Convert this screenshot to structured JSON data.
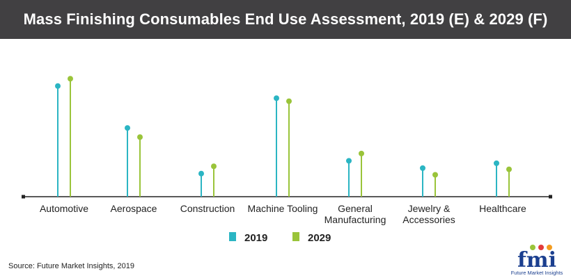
{
  "title": "Mass Finishing Consumables End Use Assessment, 2019 (E) & 2029 (F)",
  "source": "Source: Future Market Insights, 2019",
  "logo": {
    "wordmark": "fmi",
    "tagline": "Future Market Insights"
  },
  "colors": {
    "series_2019": "#2bb5c3",
    "series_2029": "#9ac43a",
    "title_bg": "#414042",
    "logo_blue": "#1b3f8f"
  },
  "chart_data": {
    "type": "lollipop",
    "title": "Mass Finishing Consumables End Use Assessment, 2019 (E) & 2029 (F)",
    "categories": [
      [
        "Automotive"
      ],
      [
        "Aerospace"
      ],
      [
        "Construction"
      ],
      [
        "Machine Tooling"
      ],
      [
        "General",
        "Manufacturing"
      ],
      [
        "Jewelry &",
        "Accessories"
      ],
      [
        "Healthcare"
      ]
    ],
    "series": [
      {
        "name": "2019",
        "values": [
          182,
          113,
          38,
          162,
          59,
          47,
          55
        ]
      },
      {
        "name": "2029",
        "values": [
          194,
          98,
          50,
          157,
          71,
          36,
          45
        ]
      }
    ],
    "ylim": [
      0,
      200
    ],
    "y_axis_visible": false,
    "grid": false,
    "legend": "bottom-center"
  }
}
